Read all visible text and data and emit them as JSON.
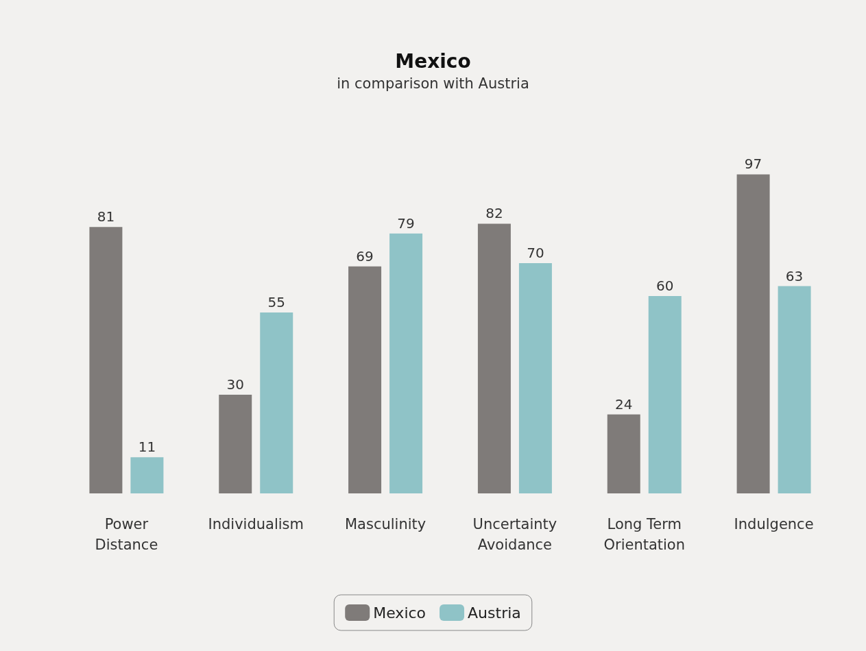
{
  "chart_data": {
    "type": "bar",
    "title": "Mexico",
    "subtitle": "in comparison with Austria",
    "categories": [
      "Power Distance",
      "Individualism",
      "Masculinity",
      "Uncertainty Avoidance",
      "Long Term Orientation",
      "Indulgence"
    ],
    "series": [
      {
        "name": "Mexico",
        "color": "#7f7b79",
        "values": [
          81,
          30,
          69,
          82,
          24,
          97
        ]
      },
      {
        "name": "Austria",
        "color": "#8fc3c7",
        "values": [
          11,
          55,
          79,
          70,
          60,
          63
        ]
      }
    ],
    "data_labels": true,
    "legend": "bottom"
  }
}
